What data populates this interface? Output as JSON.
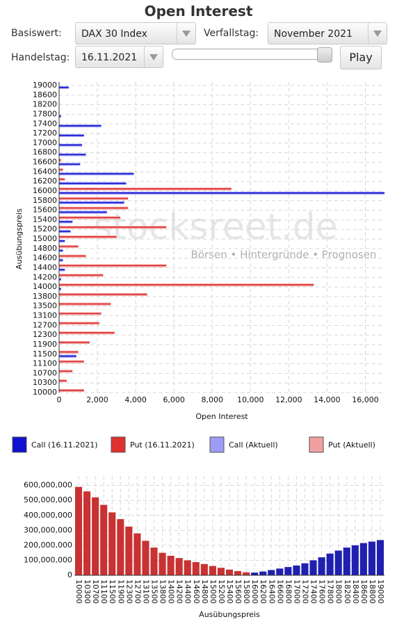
{
  "header": {
    "title": "Open Interest"
  },
  "controls": {
    "basiswert_label": "Basiswert:",
    "basiswert": "DAX 30 Index",
    "verfallstag_label": "Verfallstag:",
    "verfallstag": "November 2021",
    "handelstag_label": "Handelstag:",
    "handelstag": "16.11.2021",
    "play": "Play"
  },
  "watermark": {
    "brand": "stocksreet.de",
    "tagline": "Börsen • Hintergründe • Prognosen"
  },
  "chart_data": [
    {
      "type": "hbar",
      "x_label": "Open Interest",
      "y_label": "Ausübungspreis",
      "categories": [
        "10000",
        "10300",
        "10700",
        "11100",
        "11500",
        "11900",
        "12300",
        "12700",
        "13100",
        "13500",
        "13800",
        "14000",
        "14200",
        "14400",
        "14600",
        "14800",
        "15000",
        "15200",
        "15400",
        "15600",
        "15800",
        "16000",
        "16200",
        "16400",
        "16600",
        "16800",
        "17000",
        "17200",
        "17400",
        "17800",
        "18200",
        "18600",
        "19000"
      ],
      "series": [
        {
          "name": "Put (Aktuell)",
          "color": "#f0a0a0",
          "values": [
            1300,
            400,
            700,
            1300,
            1000,
            1600,
            2900,
            2100,
            2200,
            2700,
            4600,
            13300,
            2300,
            5600,
            1400,
            1000,
            3000,
            5600,
            3200,
            3600,
            3600,
            9000,
            300,
            200,
            100,
            0,
            0,
            0,
            0,
            0,
            0,
            0,
            0
          ]
        },
        {
          "name": "Call (Aktuell)",
          "color": "#9c9cf6",
          "values": [
            0,
            0,
            0,
            0,
            900,
            0,
            0,
            0,
            0,
            0,
            0,
            100,
            100,
            300,
            200,
            200,
            300,
            600,
            700,
            2500,
            3400,
            17000,
            3500,
            3900,
            1100,
            1400,
            1200,
            1300,
            2200,
            100,
            0,
            0,
            500
          ]
        },
        {
          "name": "Put (16.11.2021)",
          "color": "#e03030",
          "values": [
            1300,
            400,
            700,
            1300,
            1000,
            1600,
            2900,
            2100,
            2200,
            2700,
            4600,
            13300,
            2300,
            5600,
            1400,
            1000,
            3000,
            5600,
            3200,
            3600,
            3600,
            9000,
            300,
            200,
            100,
            0,
            0,
            0,
            0,
            0,
            0,
            0,
            0
          ]
        },
        {
          "name": "Call (16.11.2021)",
          "color": "#1010d0",
          "values": [
            0,
            0,
            0,
            0,
            900,
            0,
            0,
            0,
            0,
            0,
            0,
            100,
            100,
            300,
            200,
            200,
            300,
            600,
            700,
            2500,
            3400,
            17000,
            3500,
            3900,
            1100,
            1400,
            1200,
            1300,
            2200,
            100,
            0,
            0,
            500
          ]
        }
      ],
      "xlim": [
        0,
        17000
      ],
      "xticks": [
        0,
        {
          "value": 2000,
          "label": "2,000"
        },
        {
          "value": 4000,
          "label": "4,000"
        },
        {
          "value": 6000,
          "label": "6,000"
        },
        {
          "value": 8000,
          "label": "8,000"
        },
        {
          "value": 10000,
          "label": "10,000"
        },
        {
          "value": 12000,
          "label": "12,000"
        },
        {
          "value": 14000,
          "label": "14,000"
        },
        {
          "value": 16000,
          "label": "16,000"
        }
      ],
      "grid": true
    },
    {
      "type": "bar",
      "x_label": "Ausübungspreis",
      "categories": [
        "10000",
        "10300",
        "10700",
        "11100",
        "11500",
        "11900",
        "12300",
        "12700",
        "13100",
        "13500",
        "13800",
        "14000",
        "14200",
        "14400",
        "14600",
        "14800",
        "15000",
        "15200",
        "15400",
        "15600",
        "15800",
        "16000",
        "16200",
        "16400",
        "16600",
        "16800",
        "17000",
        "17200",
        "17400",
        "17600",
        "17800",
        "18000",
        "18200",
        "18400",
        "18600",
        "18800",
        "19000"
      ],
      "values": [
        590000000,
        560000000,
        520000000,
        470000000,
        420000000,
        375000000,
        325000000,
        280000000,
        230000000,
        185000000,
        150000000,
        130000000,
        115000000,
        100000000,
        88000000,
        75000000,
        62000000,
        50000000,
        38000000,
        28000000,
        20000000,
        18000000,
        25000000,
        35000000,
        45000000,
        55000000,
        65000000,
        80000000,
        100000000,
        120000000,
        145000000,
        165000000,
        185000000,
        200000000,
        215000000,
        225000000,
        235000000
      ],
      "colors": [
        "#c83232",
        "#c83232",
        "#c83232",
        "#c83232",
        "#c83232",
        "#c83232",
        "#c83232",
        "#c83232",
        "#c83232",
        "#c83232",
        "#c83232",
        "#c83232",
        "#c83232",
        "#c83232",
        "#c83232",
        "#c83232",
        "#c83232",
        "#c83232",
        "#c83232",
        "#c83232",
        "#c83232",
        "#2020b0",
        "#2020b0",
        "#2020b0",
        "#2020b0",
        "#2020b0",
        "#2020b0",
        "#2020b0",
        "#2020b0",
        "#2020b0",
        "#2020b0",
        "#2020b0",
        "#2020b0",
        "#2020b0",
        "#2020b0",
        "#2020b0",
        "#2020b0"
      ],
      "ylim": [
        0,
        640000000
      ],
      "yticks": [
        0,
        {
          "value": 100000000,
          "label": "100,000,000"
        },
        {
          "value": 200000000,
          "label": "200,000,000"
        },
        {
          "value": 300000000,
          "label": "300,000,000"
        },
        {
          "value": 400000000,
          "label": "400,000,000"
        },
        {
          "value": 500000000,
          "label": "500,000,000"
        },
        {
          "value": 600000000,
          "label": "600,000,000"
        }
      ],
      "grid": true
    }
  ]
}
